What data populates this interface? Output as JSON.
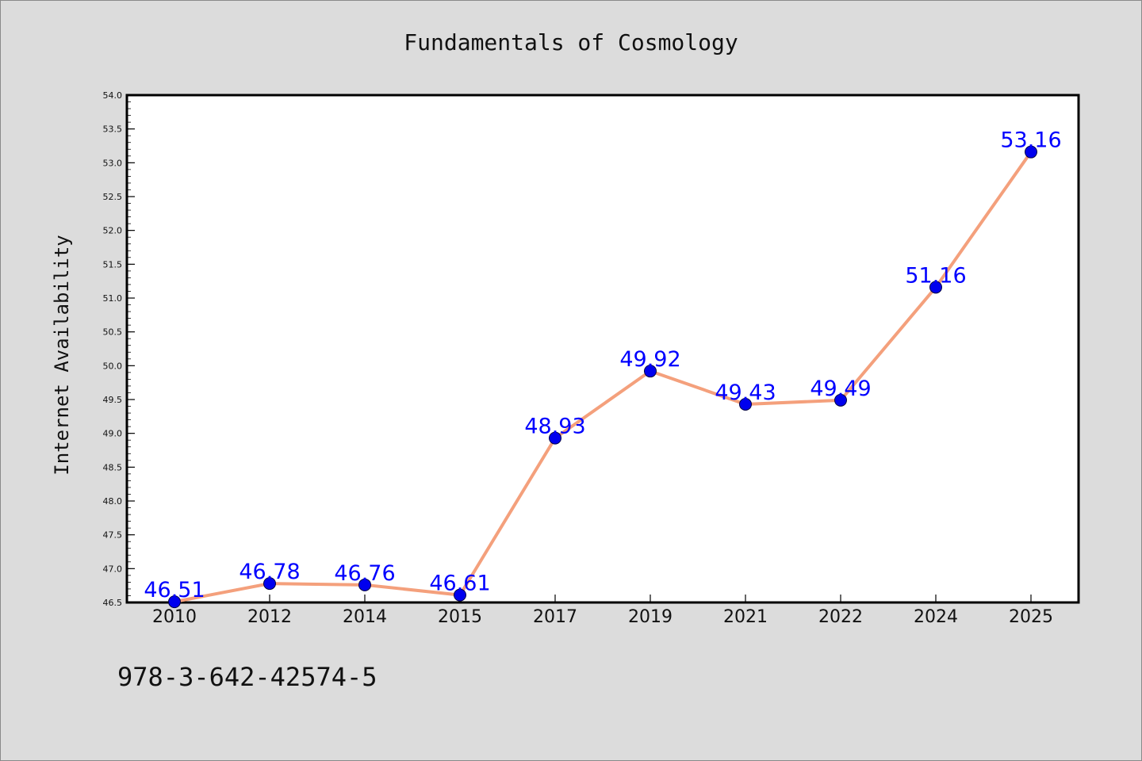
{
  "chart_data": {
    "type": "line",
    "title": "Fundamentals of Cosmology",
    "xlabel": "",
    "ylabel": "Internet Availability",
    "categories": [
      "2010",
      "2012",
      "2014",
      "2015",
      "2017",
      "2019",
      "2021",
      "2022",
      "2024",
      "2025"
    ],
    "values": [
      46.51,
      46.78,
      46.76,
      46.61,
      48.93,
      49.92,
      49.43,
      49.49,
      51.16,
      53.16
    ],
    "data_labels": [
      "46.51",
      "46.78",
      "46.76",
      "46.61",
      "48.93",
      "49.92",
      "49.43",
      "49.49",
      "51.16",
      "53.16"
    ],
    "ylim": [
      46.5,
      54.0
    ],
    "y_ticks": [
      "46.5",
      "47.0",
      "47.5",
      "48.0",
      "48.5",
      "49.0",
      "49.5",
      "50.0",
      "50.5",
      "51.0",
      "51.5",
      "52.0",
      "52.5",
      "53.0",
      "53.5",
      "54.0"
    ],
    "grid": false,
    "legend": "none",
    "line_color": "#f4a07c",
    "marker_color": "#0000ee",
    "label_color": "#0000ff",
    "footnote": "978-3-642-42574-5"
  }
}
